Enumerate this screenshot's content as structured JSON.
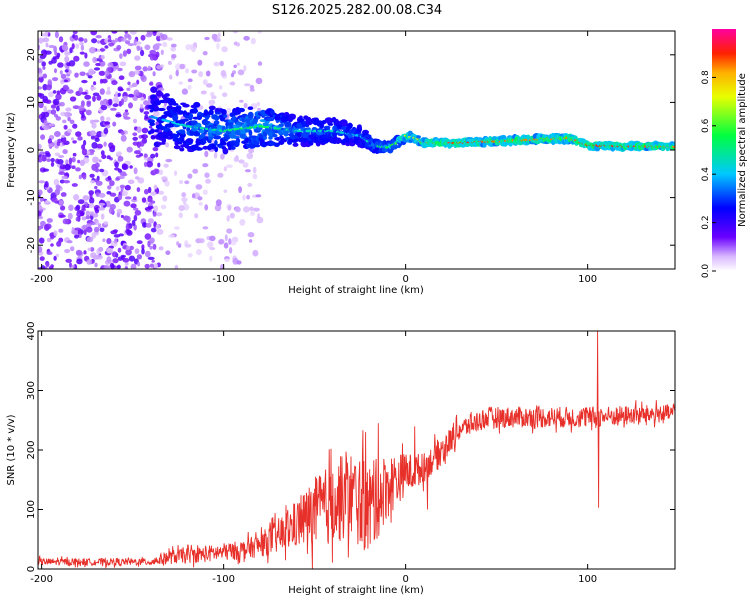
{
  "figure_title": "S126.2025.282.00.08.C34",
  "colors": {
    "snr_line": "#e8302a",
    "frame": "#000000",
    "background": "#ffffff"
  },
  "chart_data": [
    {
      "type": "heatmap",
      "title": "S126.2025.282.00.08.C34",
      "xlabel": "Height of straight line (km)",
      "ylabel": "Frequency (Hz)",
      "xlim": [
        -202,
        148
      ],
      "ylim": [
        -25,
        25
      ],
      "xticks": [
        -200,
        -100,
        0,
        100
      ],
      "yticks": [
        -20,
        -10,
        0,
        10,
        20
      ],
      "colorbar": {
        "label": "Normalized spectral amplitude",
        "range": [
          0.0,
          1.0
        ],
        "ticks": [
          0.0,
          0.2,
          0.4,
          0.6,
          0.8
        ],
        "tick_labels": [
          "0.0",
          "0.2",
          "0.4",
          "0.6",
          "0.8"
        ],
        "colormap": "rainbow (white-violet-blue-cyan-green-yellow-red-magenta)"
      },
      "ridge": {
        "description": "dominant spectral line vs height",
        "x": [
          -140,
          -120,
          -100,
          -80,
          -60,
          -40,
          -25,
          -18,
          -10,
          -5,
          0,
          5,
          10,
          30,
          60,
          90,
          100,
          120,
          148
        ],
        "freq_hz": [
          7,
          5,
          4,
          5,
          4,
          4,
          3,
          1,
          0.5,
          1.5,
          3,
          2.5,
          1.5,
          1.5,
          2,
          2.5,
          1,
          0.8,
          0.7
        ],
        "amplitude": [
          0.35,
          0.45,
          0.5,
          0.55,
          0.45,
          0.45,
          0.4,
          0.5,
          0.55,
          0.6,
          0.75,
          0.7,
          0.85,
          0.9,
          0.85,
          0.85,
          0.9,
          0.9,
          0.85
        ],
        "spread_hz": [
          12,
          10,
          9,
          8,
          6,
          5,
          4,
          2.5,
          2,
          2,
          2,
          1.5,
          1.2,
          1.2,
          1.5,
          1.5,
          1.2,
          1.2,
          1.2
        ]
      },
      "noise": {
        "description": "scattered low-amplitude speckle over full band",
        "x_range": [
          -202,
          -90
        ],
        "dense_until_x": -135
      }
    },
    {
      "type": "line",
      "title": "",
      "xlabel": "Height of straight line (km)",
      "ylabel": "SNR (10 * v/v)",
      "xlim": [
        -202,
        148
      ],
      "ylim": [
        0,
        400
      ],
      "xticks": [
        -200,
        -100,
        0,
        100
      ],
      "yticks": [
        0,
        100,
        200,
        300,
        400
      ],
      "series": [
        {
          "name": "SNR",
          "color": "#e8302a",
          "baseline_x": [
            -202,
            -140,
            -130,
            -110,
            -90,
            -80,
            -70,
            -60,
            -50,
            -40,
            -30,
            -20,
            -10,
            0,
            10,
            20,
            30,
            45,
            60,
            100,
            148
          ],
          "baseline_y": [
            12,
            12,
            20,
            25,
            32,
            40,
            55,
            75,
            95,
            110,
            125,
            100,
            140,
            160,
            170,
            200,
            235,
            255,
            255,
            255,
            262
          ],
          "noise_amplitude": [
            6,
            6,
            12,
            14,
            16,
            20,
            30,
            40,
            60,
            70,
            75,
            80,
            55,
            35,
            25,
            25,
            18,
            18,
            18,
            18,
            15
          ],
          "spikes": [
            {
              "x": 105.5,
              "y": 400
            },
            {
              "x": 106.0,
              "y": 103
            },
            {
              "x": -15.0,
              "y": 245
            },
            {
              "x": -22.0,
              "y": 230
            },
            {
              "x": -40.0,
              "y": 160
            },
            {
              "x": 5.0,
              "y": 240
            },
            {
              "x": 12.0,
              "y": 100
            }
          ]
        }
      ]
    }
  ]
}
